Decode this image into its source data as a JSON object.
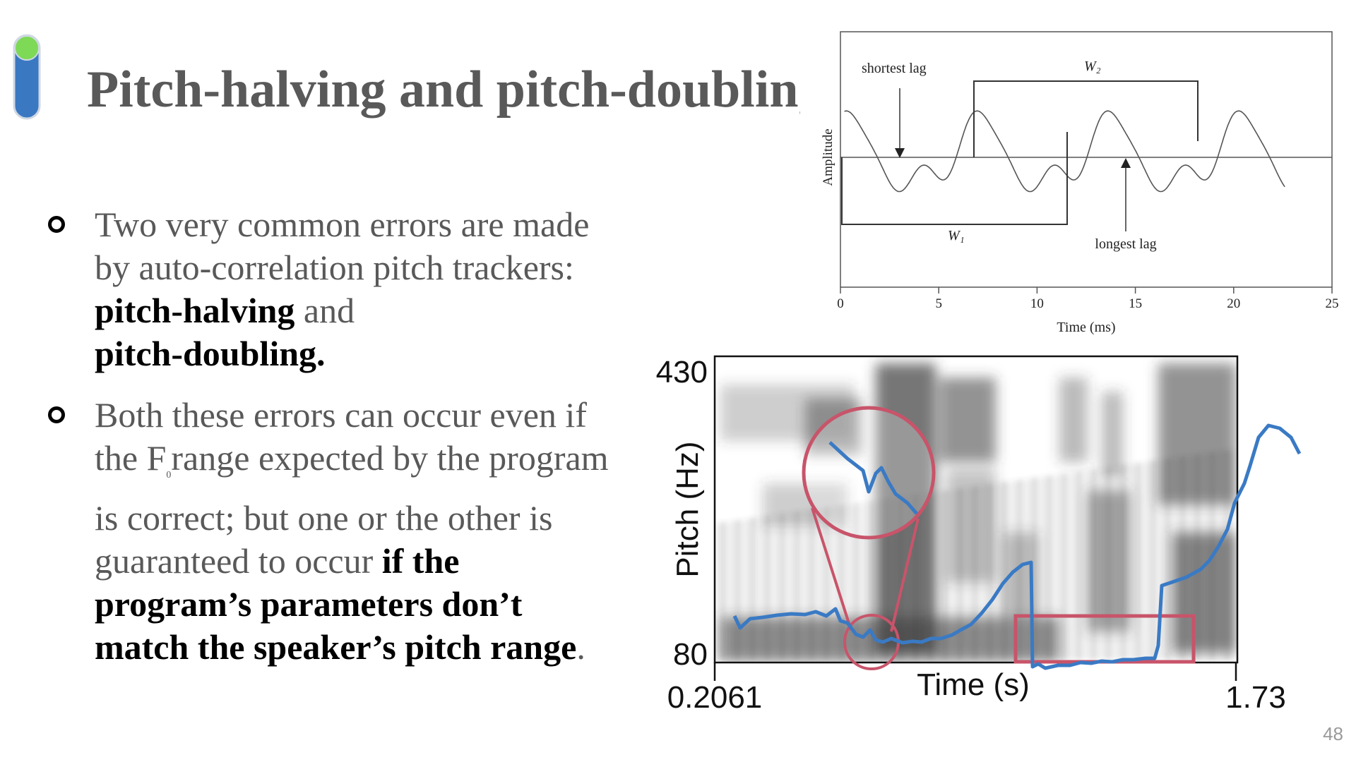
{
  "slide": {
    "title": "Pitch-halving and pitch-doubling",
    "page_number": "48",
    "accent_colors": {
      "top": "#7ed957",
      "bottom": "#3a78c2"
    }
  },
  "bullets": [
    {
      "parts": [
        {
          "text": "Two very common errors are made by auto-correlation pitch trackers: ",
          "bold": false
        },
        {
          "text": "pitch-halving",
          "bold": true
        },
        {
          "text": " and ",
          "bold": false
        },
        {
          "text": "pitch-doubling.",
          "bold": true
        }
      ]
    },
    {
      "parts": [
        {
          "text": "Both these errors can occur even if the F",
          "bold": false
        },
        {
          "text": "0",
          "bold": false,
          "sub": true
        },
        {
          "text": "range expected by the program is correct; but one or the other is guaranteed to occur ",
          "bold": false
        },
        {
          "text": "if the program’s parameters don’t match the speaker’s pitch range",
          "bold": true
        },
        {
          "text": ".",
          "bold": false
        }
      ]
    }
  ],
  "waveform_figure": {
    "ylabel": "Amplitude",
    "xlabel": "Time (ms)",
    "xticks": [
      "0",
      "5",
      "10",
      "15",
      "20",
      "25"
    ],
    "xlim": [
      0,
      25
    ],
    "annotations": {
      "shortest_lag": "shortest lag",
      "longest_lag": "longest lag",
      "w1": "W₁",
      "w2": "W₂"
    },
    "line_color": "#555555"
  },
  "pitch_figure": {
    "ylabel": "Pitch (Hz)",
    "xlabel": "Time (s)",
    "y_top": "430",
    "y_bottom": "80",
    "x_left": "0.2061",
    "x_right": "1.73",
    "pitch_color": "#3a7ac4",
    "highlight_color": "#c8546a"
  }
}
